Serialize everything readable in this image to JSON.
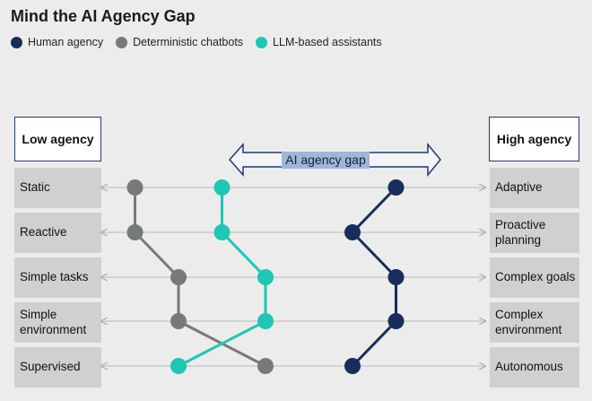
{
  "title": "Mind the AI Agency Gap",
  "legend": [
    {
      "label": "Human agency",
      "color": "#172d5b"
    },
    {
      "label": "Deterministic chatbots",
      "color": "#767a78"
    },
    {
      "label": "LLM-based assistants",
      "color": "#1ec7b3"
    }
  ],
  "headers": {
    "low": "Low agency",
    "high": "High agency"
  },
  "gap_label": "AI agency gap",
  "rows": [
    {
      "low": "Static",
      "high": "Adaptive"
    },
    {
      "low": "Reactive",
      "high": "Proactive planning"
    },
    {
      "low": "Simple tasks",
      "high": "Complex goals"
    },
    {
      "low": "Simple environment",
      "high": "Complex environment"
    },
    {
      "low": "Supervised",
      "high": "Autonomous"
    }
  ],
  "series": [
    {
      "name": "Deterministic chatbots",
      "color": "#767a78",
      "levels": [
        1,
        1,
        2,
        2,
        4
      ]
    },
    {
      "name": "LLM-based assistants",
      "color": "#1ec7b3",
      "levels": [
        3,
        3,
        4,
        4,
        2
      ]
    },
    {
      "name": "Human agency",
      "color": "#172d5b",
      "levels": [
        7,
        6,
        7,
        7,
        6
      ]
    }
  ]
}
